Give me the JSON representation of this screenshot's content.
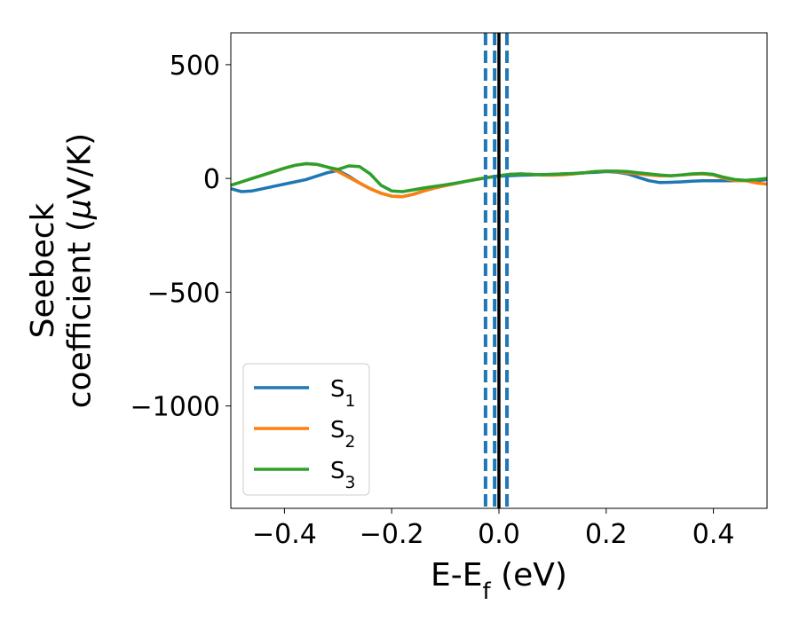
{
  "chart_data": {
    "type": "line",
    "title": "",
    "xlabel": "E-E$_f$ (eV)",
    "ylabel": "Seebeck\ncoefficient  ($\\mu$V/K)",
    "xlim": [
      -0.5,
      0.5
    ],
    "ylim": [
      -1450,
      640
    ],
    "grid": false,
    "legend_position": "lower-left",
    "xticks": [
      {
        "value": -0.4,
        "label": "−0.4"
      },
      {
        "value": -0.2,
        "label": "−0.2"
      },
      {
        "value": 0.0,
        "label": "0.0"
      },
      {
        "value": 0.2,
        "label": "0.2"
      },
      {
        "value": 0.4,
        "label": "0.4"
      }
    ],
    "yticks": [
      {
        "value": 500,
        "label": "500"
      },
      {
        "value": 0,
        "label": "0"
      },
      {
        "value": -500,
        "label": "−500"
      },
      {
        "value": -1000,
        "label": "−1000"
      }
    ],
    "vertical_lines": [
      {
        "x": 0.0,
        "style": "solid",
        "color": "#000000"
      },
      {
        "x": -0.025,
        "style": "dashed",
        "color": "#1f77b4"
      },
      {
        "x": -0.008,
        "style": "dashed",
        "color": "#1f77b4"
      },
      {
        "x": 0.015,
        "style": "dashed",
        "color": "#1f77b4"
      }
    ],
    "series": [
      {
        "name": "S$_1$",
        "color": "#1f77b4",
        "x": [
          -0.5,
          -0.48,
          -0.46,
          -0.44,
          -0.42,
          -0.4,
          -0.38,
          -0.36,
          -0.34,
          -0.32,
          -0.3,
          -0.28,
          -0.26,
          -0.24,
          -0.22,
          -0.2,
          -0.18,
          -0.16,
          -0.14,
          -0.12,
          -0.1,
          -0.08,
          -0.06,
          -0.04,
          -0.02,
          0.0,
          0.02,
          0.04,
          0.06,
          0.08,
          0.1,
          0.12,
          0.14,
          0.16,
          0.18,
          0.2,
          0.22,
          0.24,
          0.26,
          0.28,
          0.3,
          0.32,
          0.34,
          0.36,
          0.38,
          0.4,
          0.42,
          0.44,
          0.46,
          0.48,
          0.5
        ],
        "y": [
          -45,
          -58,
          -55,
          -45,
          -35,
          -25,
          -15,
          -5,
          10,
          25,
          35,
          10,
          -20,
          -45,
          -65,
          -78,
          -80,
          -70,
          -55,
          -42,
          -32,
          -22,
          -12,
          -3,
          5,
          10,
          12,
          14,
          15,
          17,
          18,
          20,
          22,
          25,
          27,
          30,
          28,
          20,
          5,
          -10,
          -18,
          -17,
          -15,
          -12,
          -10,
          -10,
          -10,
          -10,
          -10,
          -10,
          -5
        ]
      },
      {
        "name": "S$_2$",
        "color": "#ff7f0e",
        "x": [
          -0.5,
          -0.48,
          -0.46,
          -0.44,
          -0.42,
          -0.4,
          -0.38,
          -0.36,
          -0.34,
          -0.32,
          -0.3,
          -0.28,
          -0.26,
          -0.24,
          -0.22,
          -0.2,
          -0.18,
          -0.16,
          -0.14,
          -0.12,
          -0.1,
          -0.08,
          -0.06,
          -0.04,
          -0.02,
          0.0,
          0.02,
          0.04,
          0.06,
          0.08,
          0.1,
          0.12,
          0.14,
          0.16,
          0.18,
          0.2,
          0.22,
          0.24,
          0.26,
          0.28,
          0.3,
          0.32,
          0.34,
          0.36,
          0.38,
          0.4,
          0.42,
          0.44,
          0.46,
          0.48,
          0.5
        ],
        "y": [
          -30,
          -15,
          0,
          15,
          30,
          45,
          58,
          65,
          62,
          50,
          30,
          5,
          -20,
          -45,
          -65,
          -78,
          -80,
          -70,
          -55,
          -42,
          -32,
          -22,
          -12,
          -3,
          5,
          12,
          18,
          20,
          18,
          15,
          14,
          16,
          20,
          25,
          30,
          32,
          30,
          25,
          20,
          15,
          12,
          12,
          15,
          18,
          20,
          15,
          0,
          -10,
          -10,
          -20,
          -25
        ]
      },
      {
        "name": "S$_3$",
        "color": "#2ca02c",
        "x": [
          -0.5,
          -0.48,
          -0.46,
          -0.44,
          -0.42,
          -0.4,
          -0.38,
          -0.36,
          -0.34,
          -0.32,
          -0.3,
          -0.28,
          -0.26,
          -0.24,
          -0.22,
          -0.2,
          -0.18,
          -0.16,
          -0.14,
          -0.12,
          -0.1,
          -0.08,
          -0.06,
          -0.04,
          -0.02,
          0.0,
          0.02,
          0.04,
          0.06,
          0.08,
          0.1,
          0.12,
          0.14,
          0.16,
          0.18,
          0.2,
          0.22,
          0.24,
          0.26,
          0.28,
          0.3,
          0.32,
          0.34,
          0.36,
          0.38,
          0.4,
          0.42,
          0.44,
          0.46,
          0.48,
          0.5
        ],
        "y": [
          -30,
          -15,
          0,
          15,
          30,
          45,
          58,
          65,
          62,
          50,
          40,
          55,
          52,
          20,
          -30,
          -55,
          -58,
          -50,
          -42,
          -35,
          -28,
          -20,
          -12,
          -4,
          4,
          12,
          18,
          20,
          18,
          16,
          18,
          20,
          22,
          25,
          30,
          32,
          32,
          30,
          25,
          20,
          15,
          12,
          15,
          20,
          22,
          18,
          5,
          -5,
          -8,
          -5,
          0
        ]
      }
    ]
  }
}
